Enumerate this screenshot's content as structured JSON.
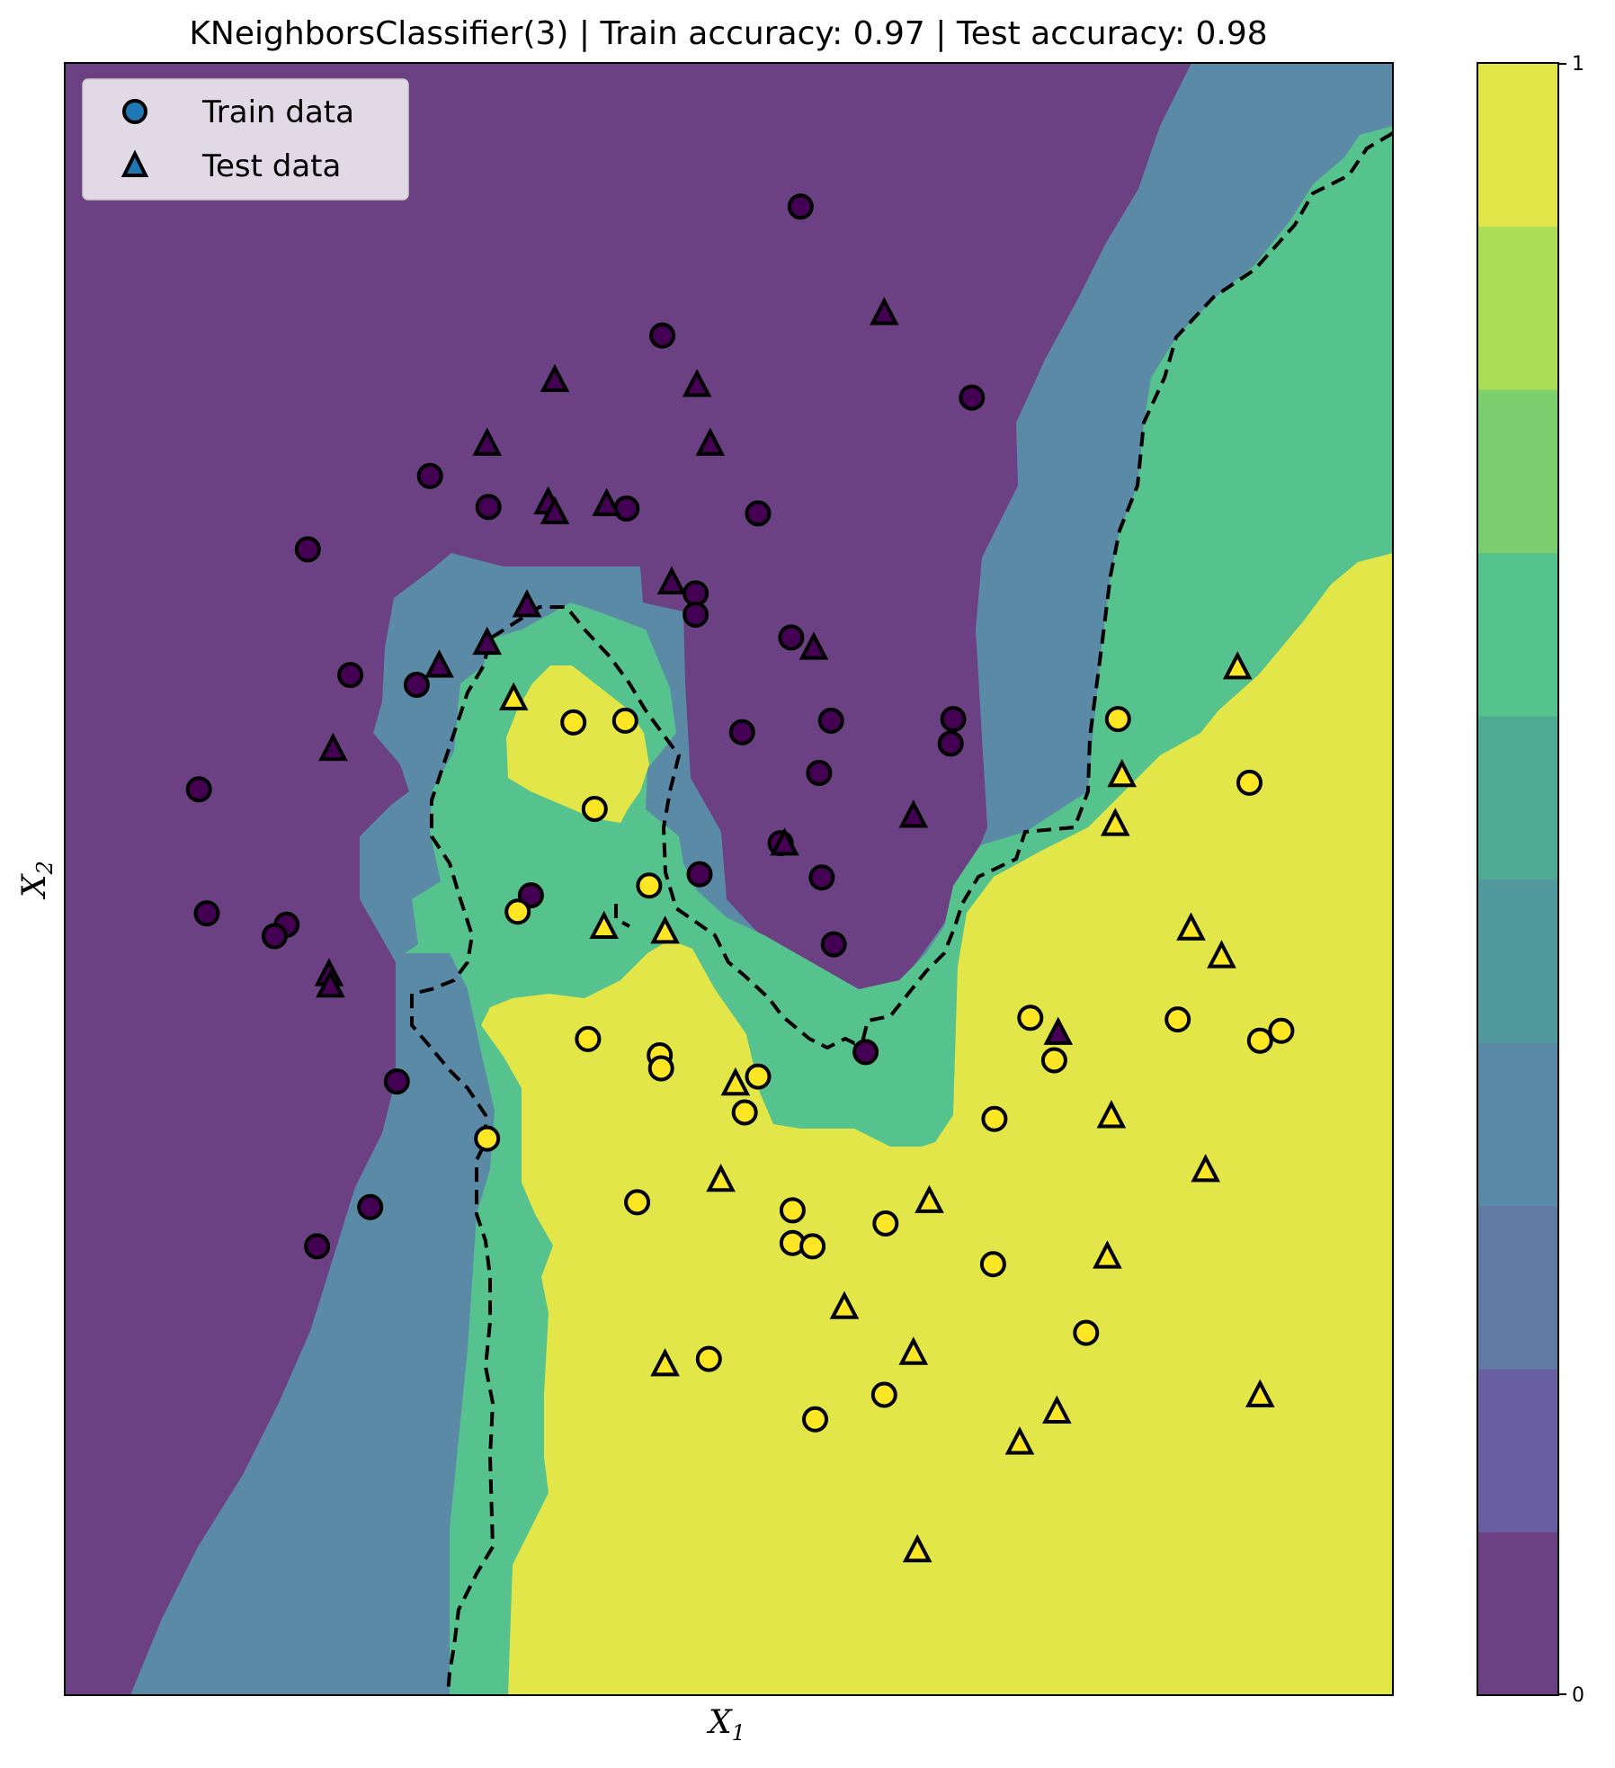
{
  "chart_data": {
    "type": "scatter",
    "title": "KNeighborsClassifier(3) | Train accuracy: 0.97 | Test accuracy: 0.98",
    "xlabel": "X",
    "xlabel_sub": "1",
    "ylabel": "X",
    "ylabel_sub": "2",
    "xlim": [
      0,
      100
    ],
    "ylim": [
      0,
      100
    ],
    "grid": false,
    "legend_position": "top-left",
    "colors": {
      "class0": "#440154",
      "class1": "#fde725",
      "marker_edge": "#000000",
      "legend_marker": "#1f77b4",
      "boundary": "#000000",
      "levels": [
        "#6b4183",
        "#6a5fa0",
        "#627aa4",
        "#5a8aa6",
        "#52999e",
        "#4fac92",
        "#56c28d",
        "#7ccf6f",
        "#acdd57",
        "#e3e648"
      ]
    },
    "colorbar": {
      "min": 0,
      "max": 1,
      "ticks": [
        "0",
        "1"
      ],
      "levels": 10
    },
    "series": [
      {
        "name": "Train data",
        "marker": "circle",
        "points": [
          [
            55.4,
            91.2,
            0
          ],
          [
            45.0,
            83.3,
            0
          ],
          [
            68.3,
            79.5,
            0
          ],
          [
            27.5,
            74.7,
            0
          ],
          [
            31.9,
            72.8,
            0
          ],
          [
            42.3,
            72.7,
            0
          ],
          [
            52.2,
            72.4,
            0
          ],
          [
            18.3,
            70.2,
            0
          ],
          [
            47.5,
            67.5,
            0
          ],
          [
            47.5,
            66.2,
            0
          ],
          [
            54.7,
            64.8,
            0
          ],
          [
            26.5,
            61.9,
            0
          ],
          [
            21.5,
            62.5,
            0
          ],
          [
            57.7,
            59.7,
            0
          ],
          [
            66.9,
            59.8,
            0
          ],
          [
            51.0,
            59.0,
            0
          ],
          [
            66.7,
            58.3,
            0
          ],
          [
            56.8,
            56.5,
            0
          ],
          [
            10.1,
            55.5,
            0
          ],
          [
            53.9,
            52.2,
            0
          ],
          [
            47.8,
            50.3,
            0
          ],
          [
            57.0,
            50.1,
            0
          ],
          [
            35.1,
            49.0,
            0
          ],
          [
            10.7,
            47.9,
            0
          ],
          [
            16.7,
            47.2,
            0
          ],
          [
            15.8,
            46.5,
            0
          ],
          [
            57.9,
            46.0,
            0
          ],
          [
            60.3,
            39.4,
            0
          ],
          [
            25.0,
            37.6,
            0
          ],
          [
            23.0,
            29.9,
            0
          ],
          [
            19.0,
            27.5,
            0
          ],
          [
            79.3,
            59.8,
            1
          ],
          [
            38.3,
            59.6,
            1
          ],
          [
            42.2,
            59.7,
            1
          ],
          [
            89.2,
            55.9,
            1
          ],
          [
            39.9,
            54.3,
            1
          ],
          [
            44.0,
            49.6,
            1
          ],
          [
            34.1,
            48.0,
            1
          ],
          [
            72.7,
            41.5,
            1
          ],
          [
            83.8,
            41.4,
            1
          ],
          [
            91.6,
            40.7,
            1
          ],
          [
            90.0,
            40.1,
            1
          ],
          [
            39.4,
            40.2,
            1
          ],
          [
            44.8,
            39.2,
            1
          ],
          [
            44.9,
            38.4,
            1
          ],
          [
            52.2,
            37.9,
            1
          ],
          [
            74.5,
            38.9,
            1
          ],
          [
            70.0,
            35.3,
            1
          ],
          [
            51.2,
            35.7,
            1
          ],
          [
            31.8,
            34.1,
            1
          ],
          [
            43.1,
            30.2,
            1
          ],
          [
            54.8,
            29.7,
            1
          ],
          [
            61.8,
            28.9,
            1
          ],
          [
            54.8,
            27.7,
            1
          ],
          [
            56.3,
            27.5,
            1
          ],
          [
            69.9,
            26.4,
            1
          ],
          [
            76.9,
            22.2,
            1
          ],
          [
            48.5,
            20.6,
            1
          ],
          [
            61.7,
            18.4,
            1
          ],
          [
            56.5,
            16.9,
            1
          ]
        ]
      },
      {
        "name": "Test data",
        "marker": "triangle",
        "points": [
          [
            61.7,
            84.6,
            0
          ],
          [
            36.9,
            80.5,
            0
          ],
          [
            47.6,
            80.2,
            0
          ],
          [
            31.8,
            76.6,
            0
          ],
          [
            48.6,
            76.6,
            0
          ],
          [
            36.4,
            73.0,
            0
          ],
          [
            40.8,
            72.9,
            0
          ],
          [
            36.9,
            72.4,
            0
          ],
          [
            45.7,
            68.1,
            0
          ],
          [
            34.8,
            66.7,
            0
          ],
          [
            31.8,
            64.4,
            0
          ],
          [
            56.4,
            64.1,
            0
          ],
          [
            28.2,
            63.0,
            0
          ],
          [
            20.2,
            57.9,
            0
          ],
          [
            63.9,
            53.8,
            0
          ],
          [
            54.2,
            52.1,
            0
          ],
          [
            19.9,
            44.1,
            0
          ],
          [
            20.0,
            43.4,
            0
          ],
          [
            74.8,
            40.5,
            0
          ],
          [
            88.3,
            62.9,
            1
          ],
          [
            33.8,
            61.0,
            1
          ],
          [
            79.6,
            56.3,
            1
          ],
          [
            79.1,
            53.3,
            1
          ],
          [
            84.8,
            46.9,
            1
          ],
          [
            40.6,
            47.0,
            1
          ],
          [
            45.2,
            46.7,
            1
          ],
          [
            87.1,
            45.2,
            1
          ],
          [
            50.5,
            37.4,
            1
          ],
          [
            78.8,
            35.4,
            1
          ],
          [
            85.9,
            32.1,
            1
          ],
          [
            49.4,
            31.5,
            1
          ],
          [
            65.1,
            30.2,
            1
          ],
          [
            78.5,
            26.8,
            1
          ],
          [
            58.7,
            23.7,
            1
          ],
          [
            63.9,
            20.9,
            1
          ],
          [
            45.2,
            20.2,
            1
          ],
          [
            90.0,
            18.3,
            1
          ],
          [
            74.7,
            17.3,
            1
          ],
          [
            71.9,
            15.4,
            1
          ],
          [
            64.2,
            8.8,
            1
          ]
        ]
      }
    ],
    "legend": [
      "Train data",
      "Test data"
    ]
  }
}
